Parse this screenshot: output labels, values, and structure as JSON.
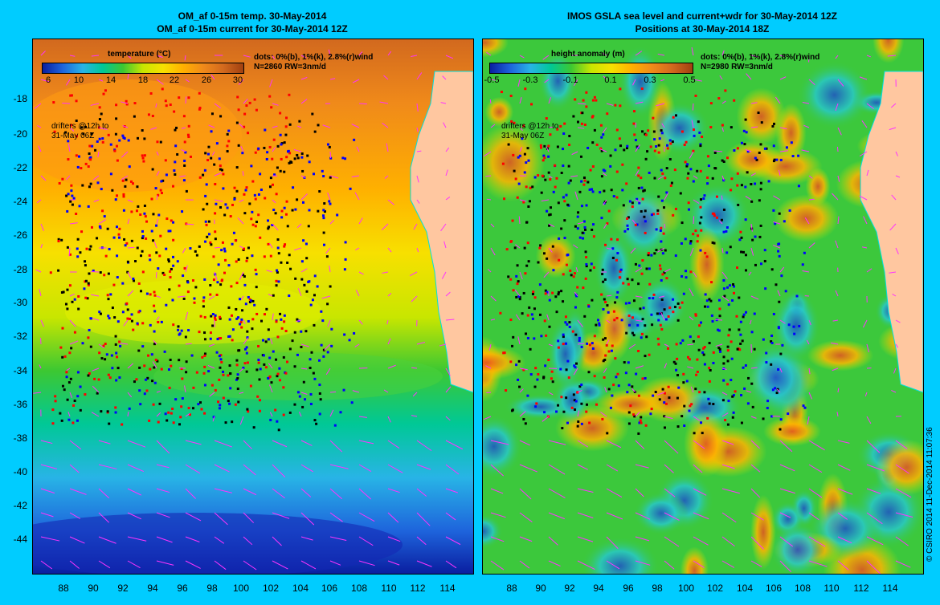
{
  "left_panel": {
    "title_line1": "OM_af 0-15m temp. 30-May-2014",
    "title_line2": "OM_af 0-15m current for 30-May-2014 12Z",
    "legend_label": "temperature (°C)",
    "colorbar_ticks": [
      "6",
      "10",
      "14",
      "18",
      "22",
      "26",
      "30"
    ],
    "dots_line1": "dots: 0%(b), 1%(k), 2.8%(r)wind",
    "dots_line2": "N=2860 RW=3nm/d",
    "drifter_line1": "drifters @12h to",
    "drifter_line2": "31-May 06Z"
  },
  "right_panel": {
    "title_line1": "IMOS GSLA sea level and current+wdr for 30-May-2014 12Z",
    "title_line2": "Positions at 30-May-2014 18Z",
    "legend_label": "height anomaly (m)",
    "colorbar_ticks": [
      "-0.5",
      "-0.3",
      "-0.1",
      "0.1",
      "0.3",
      "0.5"
    ],
    "dots_line1": "dots: 0%(b), 1%(k), 2.8%(r)wind",
    "dots_line2": "N=2980 RW=3nm/d",
    "drifter_line1": "drifters @12h to",
    "drifter_line2": "31-May 06Z"
  },
  "lat_ticks": [
    "-18",
    "-20",
    "-22",
    "-24",
    "-26",
    "-28",
    "-30",
    "-32",
    "-34",
    "-36",
    "-38",
    "-40",
    "-42",
    "-44"
  ],
  "lon_ticks": [
    "88",
    "90",
    "92",
    "94",
    "96",
    "98",
    "100",
    "102",
    "104",
    "106",
    "108",
    "110",
    "112",
    "114"
  ],
  "copyright": "© CSIRO 2014   11-Dec-2014 11:07:36",
  "colors": {
    "background": "#00ccff",
    "land": "#ffc7a0",
    "vector": "#ff33ff",
    "dot_blue": "#0000ff",
    "dot_black": "#000000",
    "dot_red": "#ff0000"
  }
}
